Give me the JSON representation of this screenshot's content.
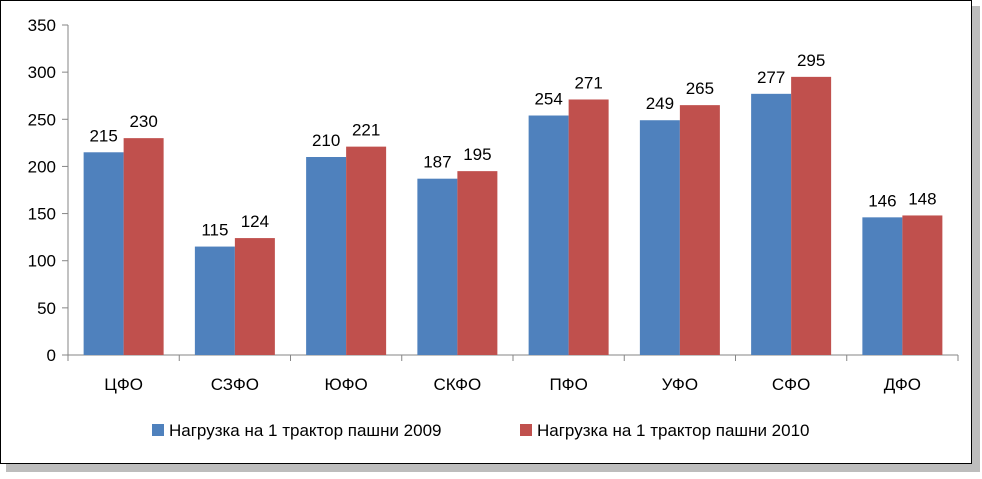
{
  "chart_data": {
    "type": "bar",
    "title": "",
    "xlabel": "",
    "ylabel": "",
    "ylim": [
      0,
      350
    ],
    "yticks": [
      0,
      50,
      100,
      150,
      200,
      250,
      300,
      350
    ],
    "grid": false,
    "legend_position": "bottom",
    "categories": [
      "ЦФО",
      "СЗФО",
      "ЮФО",
      "СКФО",
      "ПФО",
      "УФО",
      "СФО",
      "ДФО"
    ],
    "series": [
      {
        "name": "Нагрузка на 1 трактор пашни 2009",
        "color": "#4F81BD",
        "values": [
          215,
          115,
          210,
          187,
          254,
          249,
          277,
          146
        ]
      },
      {
        "name": "Нагрузка на 1 трактор пашни 2010",
        "color": "#C0504D",
        "values": [
          230,
          124,
          221,
          195,
          271,
          265,
          295,
          148
        ]
      }
    ]
  }
}
